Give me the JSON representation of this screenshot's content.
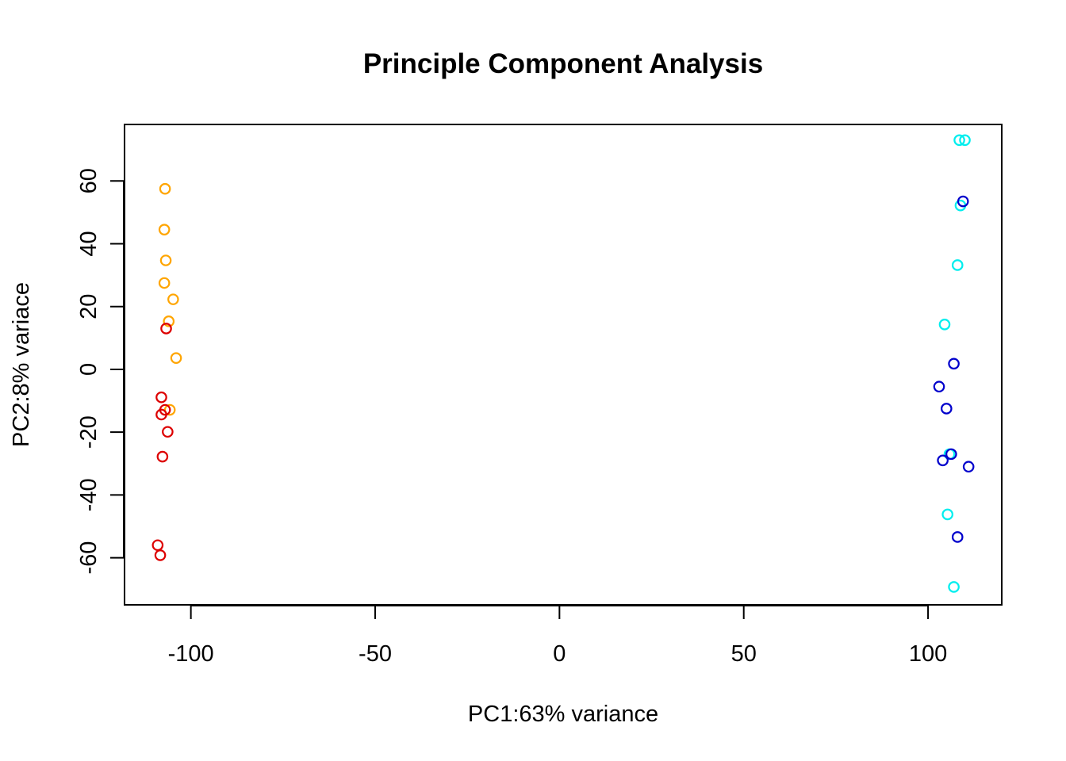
{
  "chart_data": {
    "type": "scatter",
    "title": "Principle Component Analysis",
    "xlabel": "PC1:63% variance",
    "ylabel": "PC2:8% variace",
    "xlim": [
      -118,
      120
    ],
    "ylim": [
      -75,
      78
    ],
    "x_ticks": [
      -100,
      -50,
      0,
      50,
      100
    ],
    "x_tick_labels": [
      "-100",
      "-50",
      "0",
      "50",
      "100"
    ],
    "y_ticks": [
      -60,
      -40,
      -20,
      0,
      20,
      40,
      60
    ],
    "y_tick_labels": [
      "-60",
      "-40",
      "-20",
      "0",
      "20",
      "40",
      "60"
    ],
    "grid": false,
    "legend": "none",
    "series": [
      {
        "color": "#FFA500",
        "points": [
          {
            "x": -107.0,
            "y": 57.5
          },
          {
            "x": -107.2,
            "y": 44.5
          },
          {
            "x": -106.8,
            "y": 34.7
          },
          {
            "x": -107.2,
            "y": 27.5
          },
          {
            "x": -104.8,
            "y": 22.3
          },
          {
            "x": -106.0,
            "y": 15.3
          },
          {
            "x": -104.0,
            "y": 3.6
          },
          {
            "x": -105.7,
            "y": -12.9
          }
        ]
      },
      {
        "color": "#DD0000",
        "points": [
          {
            "x": -106.7,
            "y": 13.0
          },
          {
            "x": -108.0,
            "y": -8.9
          },
          {
            "x": -107.0,
            "y": -12.9
          },
          {
            "x": -108.0,
            "y": -14.4
          },
          {
            "x": -106.3,
            "y": -19.9
          },
          {
            "x": -107.7,
            "y": -27.8
          },
          {
            "x": -109.0,
            "y": -56.0
          },
          {
            "x": -108.3,
            "y": -59.2
          }
        ]
      },
      {
        "color": "#00EEEE",
        "points": [
          {
            "x": 108.5,
            "y": 73.0
          },
          {
            "x": 110.0,
            "y": 73.0
          },
          {
            "x": 108.8,
            "y": 52.2
          },
          {
            "x": 108.0,
            "y": 33.2
          },
          {
            "x": 104.5,
            "y": 14.3
          },
          {
            "x": 105.8,
            "y": -27.0
          },
          {
            "x": 105.3,
            "y": -46.2
          },
          {
            "x": 107.0,
            "y": -69.3
          }
        ]
      },
      {
        "color": "#0000CC",
        "points": [
          {
            "x": 109.5,
            "y": 53.5
          },
          {
            "x": 107.0,
            "y": 1.8
          },
          {
            "x": 103.0,
            "y": -5.5
          },
          {
            "x": 105.0,
            "y": -12.5
          },
          {
            "x": 106.3,
            "y": -27.0
          },
          {
            "x": 104.0,
            "y": -29.0
          },
          {
            "x": 111.0,
            "y": -31.0
          },
          {
            "x": 108.0,
            "y": -53.4
          }
        ]
      }
    ]
  }
}
